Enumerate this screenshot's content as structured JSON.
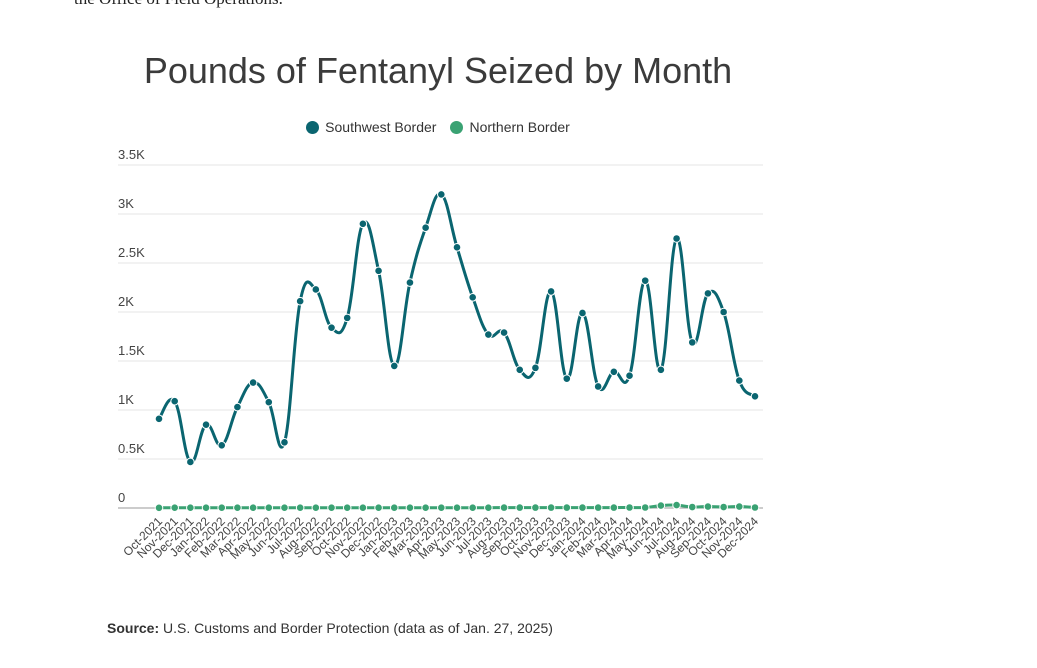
{
  "intro_text": "the Office of Field Operations.",
  "source": {
    "label": "Source:",
    "text": "U.S. Customs and Border Protection (data as of Jan. 27, 2025)"
  },
  "colors": {
    "southwest": "#0a6570",
    "northern": "#3aa273",
    "grid": "#e6e6e6",
    "axis": "#999999"
  },
  "chart_data": {
    "type": "line",
    "title": "Pounds of Fentanyl Seized by Month",
    "xlabel": "",
    "ylabel": "",
    "legend_position": "top-center",
    "grid": true,
    "ylim": [
      0,
      3500
    ],
    "y_ticks": [
      {
        "value": 0,
        "label": "0"
      },
      {
        "value": 500,
        "label": "0.5K"
      },
      {
        "value": 1000,
        "label": "1K"
      },
      {
        "value": 1500,
        "label": "1.5K"
      },
      {
        "value": 2000,
        "label": "2K"
      },
      {
        "value": 2500,
        "label": "2.5K"
      },
      {
        "value": 3000,
        "label": "3K"
      },
      {
        "value": 3500,
        "label": "3.5K"
      }
    ],
    "categories": [
      "Oct-2021",
      "Nov-2021",
      "Dec-2021",
      "Jan-2022",
      "Feb-2022",
      "Mar-2022",
      "Apr-2022",
      "May-2022",
      "Jun-2022",
      "Jul-2022",
      "Aug-2022",
      "Sep-2022",
      "Oct-2022",
      "Nov-2022",
      "Dec-2022",
      "Jan-2023",
      "Feb-2023",
      "Mar-2023",
      "Apr-2023",
      "May-2023",
      "Jun-2023",
      "Jul-2023",
      "Aug-2023",
      "Sep-2023",
      "Oct-2023",
      "Nov-2023",
      "Dec-2023",
      "Jan-2024",
      "Feb-2024",
      "Mar-2024",
      "Apr-2024",
      "May-2024",
      "Jun-2024",
      "Jul-2024",
      "Aug-2024",
      "Sep-2024",
      "Oct-2024",
      "Nov-2024",
      "Dec-2024"
    ],
    "series": [
      {
        "name": "Southwest Border",
        "values": [
          910,
          1090,
          470,
          850,
          640,
          1030,
          1280,
          1080,
          670,
          2110,
          2230,
          1840,
          1940,
          2900,
          2420,
          1450,
          2300,
          2860,
          3200,
          2660,
          2150,
          1770,
          1790,
          1410,
          1430,
          2210,
          1320,
          1990,
          1240,
          1390,
          1350,
          2320,
          1410,
          2750,
          1690,
          2190,
          2000,
          1300,
          1140
        ]
      },
      {
        "name": "Northern Border",
        "values": [
          2,
          3,
          3,
          3,
          3,
          3,
          3,
          3,
          3,
          3,
          3,
          3,
          3,
          3,
          3,
          3,
          3,
          3,
          3,
          3,
          3,
          3,
          4,
          4,
          4,
          4,
          4,
          4,
          4,
          4,
          5,
          5,
          25,
          30,
          10,
          15,
          10,
          15,
          5
        ]
      }
    ]
  }
}
